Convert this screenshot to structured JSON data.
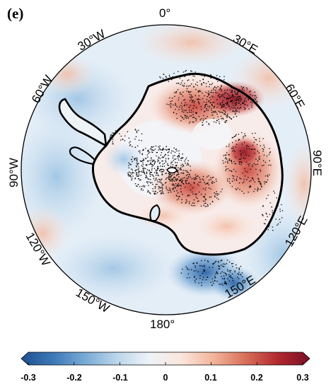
{
  "panel_label": "(e)",
  "projection": "south-polar stereographic",
  "longitude_labels": [
    "0°",
    "30°E",
    "60°E",
    "90°E",
    "120°E",
    "150°E",
    "180°",
    "150°W",
    "120°W",
    "90°W",
    "60°W",
    "30°W"
  ],
  "colorbar": {
    "ticks": [
      "-0.3",
      "-0.2",
      "-0.1",
      "0",
      "0.1",
      "0.2",
      "0.3"
    ],
    "min": -0.3,
    "max": 0.3,
    "colors": [
      "#1f4f8f",
      "#3d79b8",
      "#79abd6",
      "#bcd6ea",
      "#eef3f8",
      "#fbe6dc",
      "#f2b49a",
      "#d86f59",
      "#b2282f",
      "#7b0f24"
    ]
  },
  "stipple_color": "#000000",
  "coastline_color": "#000000"
}
